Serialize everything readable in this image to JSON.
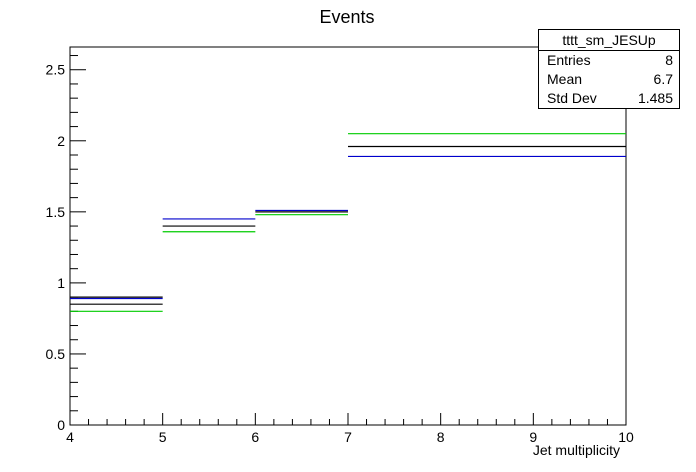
{
  "chart_data": {
    "type": "histogram",
    "title": "Events",
    "xlabel": "Jet multiplicity",
    "ylabel": "",
    "xlim": [
      4,
      10
    ],
    "ylim": [
      0,
      2.66
    ],
    "xticks": [
      "4",
      "5",
      "6",
      "7",
      "8",
      "9",
      "10"
    ],
    "yticks": [
      "0",
      "0.5",
      "1",
      "1.5",
      "2",
      "2.5"
    ],
    "bin_edges": [
      4,
      5,
      6,
      7,
      10
    ],
    "series": [
      {
        "color": "#0000cc",
        "values": [
          0.89,
          1.45,
          1.51,
          1.89
        ]
      },
      {
        "color": "#00cc00",
        "values": [
          0.8,
          1.36,
          1.48,
          2.05
        ]
      },
      {
        "color": "#000000",
        "values": [
          0.85,
          1.4,
          1.5,
          1.96
        ]
      },
      {
        "color": "#000000",
        "values": [
          0.9,
          null,
          null,
          null
        ]
      }
    ],
    "stats": {
      "name": "tttt_sm_JESUp",
      "rows": [
        {
          "label": "Entries",
          "value": "8"
        },
        {
          "label": "Mean",
          "value": "6.7"
        },
        {
          "label": "Std Dev",
          "value": "1.485"
        }
      ]
    }
  }
}
